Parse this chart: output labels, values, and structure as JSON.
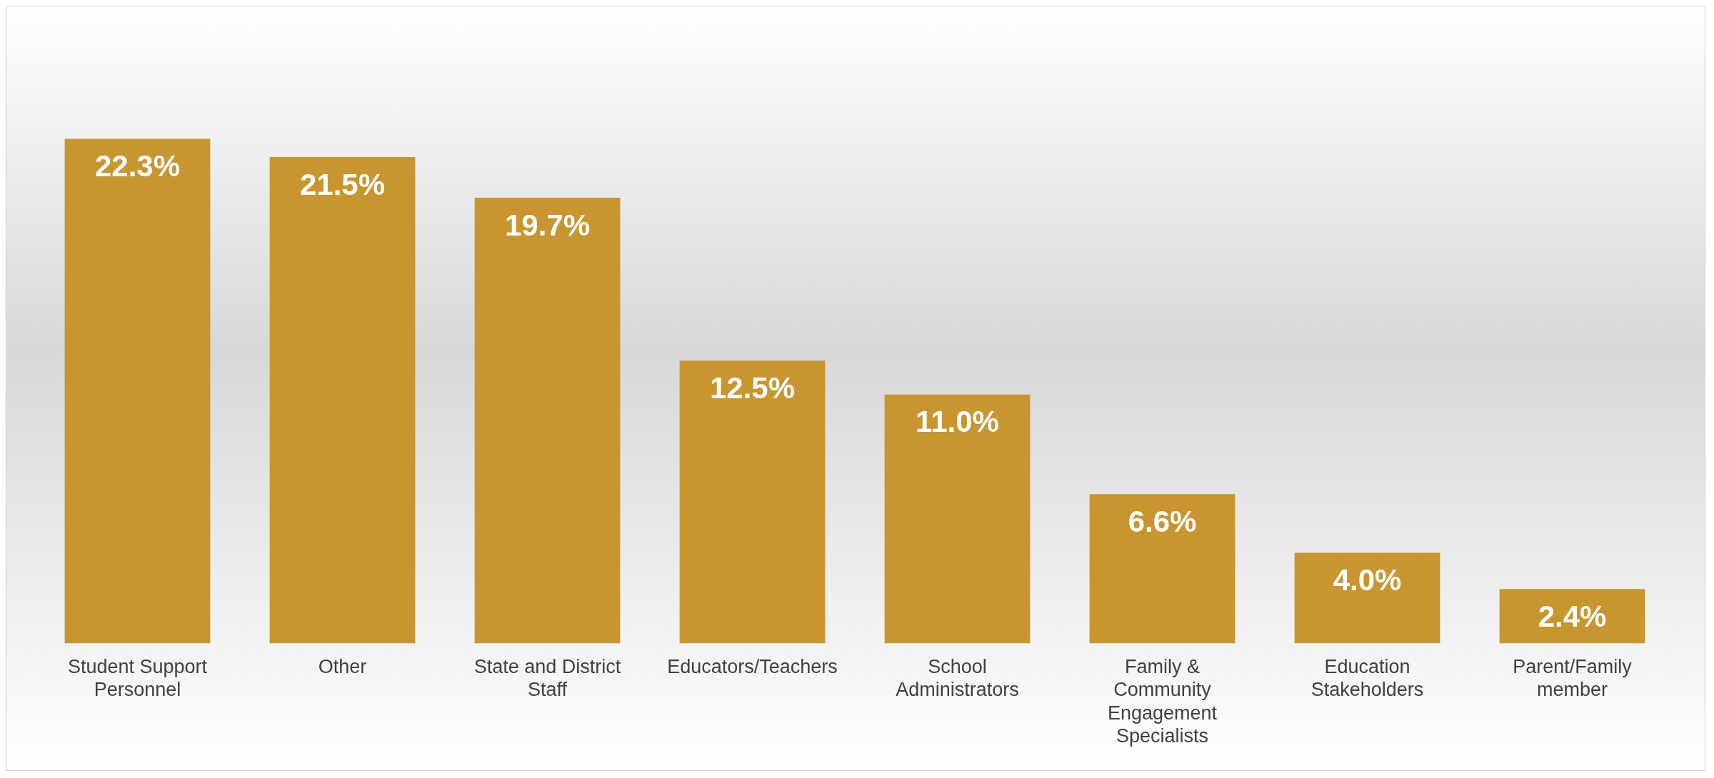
{
  "chart_data": {
    "type": "bar",
    "categories": [
      "Student Support Personnel",
      "Other",
      "State and District Staff",
      "Educators/Teachers",
      "School Administrators",
      "Family & Community Engagement Specialists",
      "Education Stakeholders",
      "Parent/Family member"
    ],
    "values": [
      22.3,
      21.5,
      19.7,
      12.5,
      11.0,
      6.6,
      4.0,
      2.4
    ],
    "value_labels": [
      "22.3%",
      "21.5%",
      "19.7%",
      "12.5%",
      "11.0%",
      "6.6%",
      "4.0%",
      "2.4%"
    ],
    "color": "#c8952f",
    "grid": false,
    "legend": false
  }
}
